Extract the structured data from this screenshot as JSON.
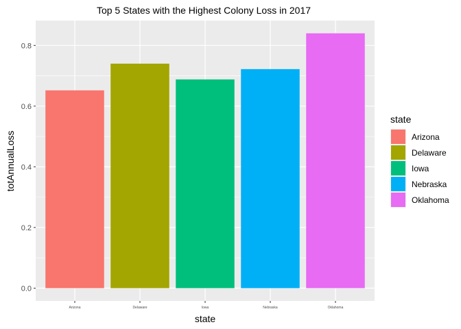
{
  "chart_data": {
    "type": "bar",
    "title": "Top 5 States with the Highest Colony Loss in 2017",
    "xlabel": "state",
    "ylabel": "totAnnualLoss",
    "categories": [
      "Arizona",
      "Delaware",
      "Iowa",
      "Nebraska",
      "Oklahoma"
    ],
    "values": [
      0.652,
      0.74,
      0.688,
      0.722,
      0.84
    ],
    "colors": [
      "#F8766D",
      "#A3A500",
      "#00BF7D",
      "#00B0F6",
      "#E76BF3"
    ],
    "ylim": [
      -0.042,
      0.882
    ],
    "yticks": [
      0.0,
      0.2,
      0.4,
      0.6,
      0.8
    ],
    "ytick_labels": [
      "0.0",
      "0.2",
      "0.4",
      "0.6",
      "0.8"
    ],
    "grid": true,
    "legend": {
      "title": "state",
      "placement": "right",
      "entries": [
        "Arizona",
        "Delaware",
        "Iowa",
        "Nebraska",
        "Oklahoma"
      ]
    }
  }
}
